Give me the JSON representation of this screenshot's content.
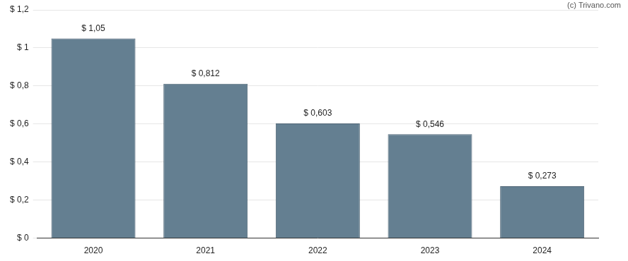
{
  "chart_data": {
    "type": "bar",
    "annotation": "(c) Trivano.com",
    "categories": [
      "2020",
      "2021",
      "2022",
      "2023",
      "2024"
    ],
    "values": [
      1.05,
      0.812,
      0.603,
      0.546,
      0.273
    ],
    "value_labels": [
      "$ 1,05",
      "$ 0,812",
      "$ 0,603",
      "$ 0,546",
      "$ 0,273"
    ],
    "data_labels": true,
    "color": "#647f91",
    "ylim": [
      0,
      1.2
    ],
    "yticks": [
      {
        "value": 0,
        "label": "$ 0"
      },
      {
        "value": 0.2,
        "label": "$ 0,2"
      },
      {
        "value": 0.4,
        "label": "$ 0,4"
      },
      {
        "value": 0.6,
        "label": "$ 0,6"
      },
      {
        "value": 0.8,
        "label": "$ 0,8"
      },
      {
        "value": 1,
        "label": "$ 1"
      },
      {
        "value": 1.2,
        "label": "$ 1,2"
      }
    ],
    "grid": true
  }
}
